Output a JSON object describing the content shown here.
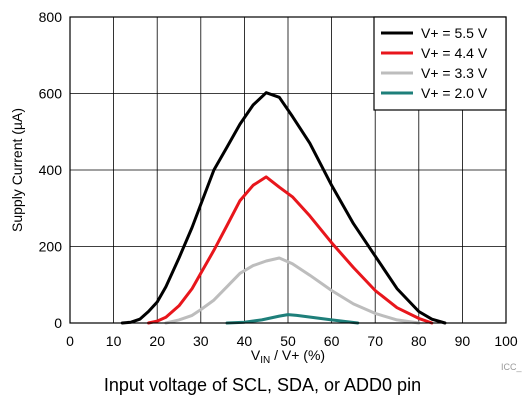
{
  "chart_data": {
    "type": "line",
    "xlabel_main": "V",
    "xlabel_sub": "IN",
    "xlabel_rest": " / V+ (%)",
    "ylabel": "Supply Current (µA)",
    "xlim": [
      0,
      100
    ],
    "ylim": [
      0,
      800
    ],
    "xticks": [
      0,
      10,
      20,
      30,
      40,
      50,
      60,
      70,
      80,
      90,
      100
    ],
    "yticks": [
      0,
      200,
      400,
      600,
      800
    ],
    "grid": true,
    "legend_position": "top-right",
    "watermark": "ICC_",
    "series": [
      {
        "name": "V+ = 5.5 V",
        "color": "#000000",
        "x": [
          12,
          14,
          16,
          18,
          20,
          22,
          25,
          28,
          30,
          33,
          36,
          39,
          42,
          45,
          48,
          51,
          55,
          60,
          65,
          70,
          75,
          80,
          83,
          86
        ],
        "y": [
          0,
          2,
          10,
          30,
          55,
          95,
          170,
          250,
          310,
          400,
          460,
          520,
          570,
          602,
          590,
          540,
          470,
          360,
          260,
          175,
          90,
          30,
          10,
          0
        ]
      },
      {
        "name": "V+ = 4.4 V",
        "color": "#e8161c",
        "x": [
          18,
          20,
          22,
          25,
          28,
          30,
          33,
          36,
          39,
          42,
          45,
          48,
          51,
          55,
          60,
          65,
          70,
          75,
          80,
          83
        ],
        "y": [
          0,
          5,
          15,
          45,
          90,
          130,
          190,
          255,
          320,
          360,
          382,
          355,
          330,
          280,
          210,
          145,
          85,
          40,
          12,
          0
        ]
      },
      {
        "name": "V+ = 3.3 V",
        "color": "#bdbdbd",
        "x": [
          22,
          25,
          28,
          30,
          33,
          36,
          39,
          42,
          45,
          48,
          51,
          55,
          60,
          65,
          70,
          75,
          80
        ],
        "y": [
          0,
          8,
          20,
          35,
          60,
          95,
          130,
          150,
          162,
          170,
          155,
          125,
          85,
          50,
          25,
          8,
          0
        ]
      },
      {
        "name": "V+ = 2.0 V",
        "color": "#1e7f7a",
        "x": [
          36,
          40,
          44,
          48,
          50,
          52,
          56,
          60,
          66
        ],
        "y": [
          0,
          2,
          8,
          18,
          22,
          20,
          14,
          8,
          0
        ]
      }
    ]
  },
  "caption": "Input voltage of SCL, SDA, or ADD0 pin"
}
